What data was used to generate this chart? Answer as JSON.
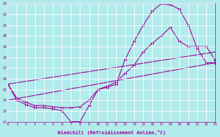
{
  "xlabel": "Windchill (Refroidissement éolien,°C)",
  "bg_color": "#b2ebeb",
  "line_color": "#990099",
  "grid_color": "#ffffff",
  "xmin": 0,
  "xmax": 23,
  "ymin": 12,
  "ymax": 23,
  "line1_x": [
    0,
    1,
    2,
    3,
    4,
    5,
    6,
    7,
    8,
    9,
    10,
    11,
    12,
    13,
    14,
    15,
    16,
    17,
    18,
    19,
    20,
    21,
    22,
    23
  ],
  "line1_y": [
    15.5,
    14.0,
    13.6,
    13.3,
    13.3,
    13.2,
    13.0,
    12.0,
    12.0,
    13.5,
    15.0,
    15.2,
    15.5,
    17.8,
    19.5,
    21.0,
    22.3,
    23.0,
    22.9,
    22.5,
    21.0,
    18.8,
    17.5,
    17.5
  ],
  "line2_x": [
    0,
    1,
    2,
    3,
    4,
    5,
    6,
    7,
    8,
    9,
    10,
    11,
    12,
    13,
    14,
    15,
    16,
    17,
    18,
    19,
    20,
    21,
    22,
    23
  ],
  "line2_y": [
    15.5,
    14.2,
    13.8,
    13.5,
    13.5,
    13.4,
    13.3,
    13.3,
    13.4,
    14.0,
    15.0,
    15.3,
    15.7,
    16.5,
    17.3,
    18.5,
    19.3,
    20.0,
    20.8,
    19.5,
    19.0,
    19.0,
    19.0,
    17.7
  ],
  "line3_x": [
    0,
    23
  ],
  "line3_y": [
    15.5,
    18.5
  ],
  "line4_x": [
    0,
    23
  ],
  "line4_y": [
    14.0,
    17.5
  ]
}
